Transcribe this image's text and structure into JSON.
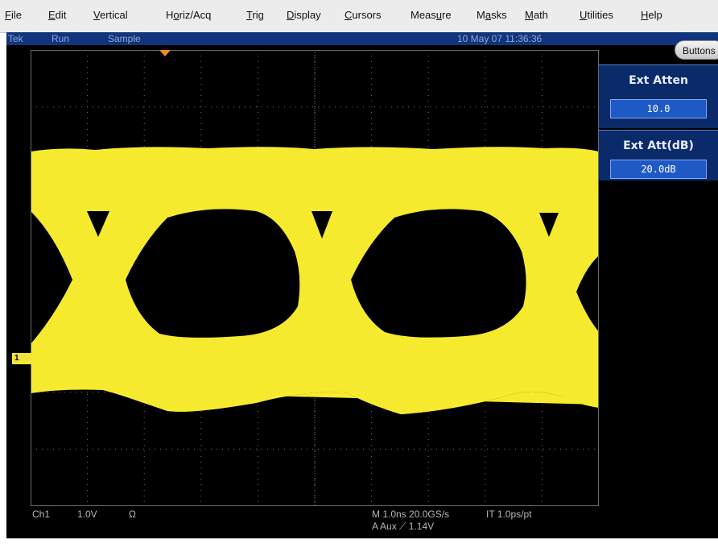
{
  "menu": {
    "items": [
      {
        "label": "File",
        "ul": 0
      },
      {
        "label": "Edit",
        "ul": 0
      },
      {
        "label": "Vertical",
        "ul": 0
      },
      {
        "label": "Horiz/Acq",
        "ul": 1
      },
      {
        "label": "Trig",
        "ul": 0
      },
      {
        "label": "Display",
        "ul": 0
      },
      {
        "label": "Cursors",
        "ul": 0
      },
      {
        "label": "Measure",
        "ul": 4
      },
      {
        "label": "Masks",
        "ul": 1
      },
      {
        "label": "Math",
        "ul": 0
      },
      {
        "label": "Utilities",
        "ul": 0
      },
      {
        "label": "Help",
        "ul": 0
      }
    ]
  },
  "status": {
    "brand": "Tek",
    "run_state": "Run",
    "acq_mode": "Sample",
    "datetime": "10 May 07 11:36:36"
  },
  "panel": {
    "buttons_label": "Buttons",
    "ext_atten": {
      "title": "Ext Atten",
      "value": "10.0"
    },
    "ext_att_db": {
      "title": "Ext Att(dB)",
      "value": "20.0dB"
    }
  },
  "readout": {
    "channel": "Ch1",
    "volts_div": "1.0V",
    "coupling": "Ω",
    "timebase": "M 1.0ns 20.0GS/s",
    "interp": "IT 1.0ps/pt",
    "trigger": "A Aux  ⟋  1.14V",
    "ch_marker": "1"
  },
  "colors": {
    "trace": "#f5ea2e",
    "screen_bg": "#000000",
    "panel_bg": "#0a2a6a",
    "status_bg": "#10357c",
    "trigger_marker": "#f08a2a"
  },
  "icons": [
    "trigger-position-marker",
    "channel-1-ground-marker"
  ]
}
